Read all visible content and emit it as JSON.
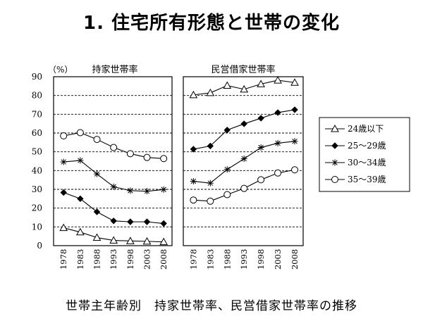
{
  "page": {
    "title": "1. 住宅所有形態と世帯の変化",
    "caption": "世帯主年齢別　持家世帯率、民営借家世帯率の推移"
  },
  "chart_data": {
    "type": "line",
    "unit_label": "（%）",
    "ylim": [
      0,
      90
    ],
    "yticks": [
      0,
      10,
      20,
      30,
      40,
      50,
      60,
      70,
      80,
      90
    ],
    "grid": true,
    "legend_position": "right",
    "panels": [
      {
        "title": "持家世帯率",
        "x": [
          "1978",
          "1983",
          "1988",
          "1993",
          "1998",
          "2003",
          "2008"
        ],
        "series": [
          {
            "name": "24歳以下",
            "marker": "triangle-open",
            "values": [
              9.5,
              7.2,
              4.3,
              2.8,
              2.5,
              2.3,
              2.0
            ]
          },
          {
            "name": "25～29歳",
            "marker": "diamond-filled",
            "values": [
              28.3,
              25.0,
              18.0,
              13.2,
              12.7,
              12.7,
              11.8
            ]
          },
          {
            "name": "30～34歳",
            "marker": "asterisk",
            "values": [
              44.6,
              45.4,
              38.2,
              31.4,
              29.3,
              29.0,
              29.9
            ]
          },
          {
            "name": "35～39歳",
            "marker": "circle-open",
            "values": [
              58.5,
              60.2,
              56.6,
              52.3,
              49.0,
              47.0,
              46.4
            ]
          }
        ]
      },
      {
        "title": "民営借家世帯率",
        "x": [
          "1978",
          "1983",
          "1988",
          "1993",
          "1998",
          "2003",
          "2008"
        ],
        "series": [
          {
            "name": "24歳以下",
            "marker": "triangle-open",
            "values": [
              80.3,
              81.4,
              85.3,
              83.3,
              86.1,
              88.1,
              86.9
            ]
          },
          {
            "name": "25～29歳",
            "marker": "diamond-filled",
            "values": [
              51.4,
              53.1,
              61.6,
              64.9,
              67.9,
              70.9,
              72.4
            ]
          },
          {
            "name": "30～34歳",
            "marker": "asterisk",
            "values": [
              34.3,
              33.3,
              40.6,
              46.3,
              52.3,
              54.6,
              55.6
            ]
          },
          {
            "name": "35～39歳",
            "marker": "circle-open",
            "values": [
              24.3,
              23.7,
              27.2,
              30.5,
              35.1,
              38.7,
              40.4
            ]
          }
        ]
      }
    ]
  }
}
